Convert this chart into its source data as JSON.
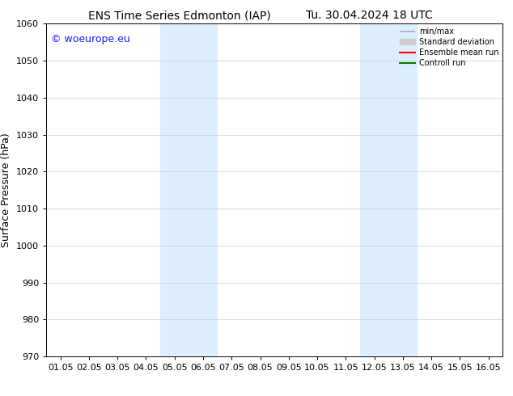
{
  "title_left": "ENS Time Series Edmonton (IAP)",
  "title_right": "Tu. 30.04.2024 18 UTC",
  "ylabel": "Surface Pressure (hPa)",
  "ylim": [
    970,
    1060
  ],
  "yticks": [
    970,
    980,
    990,
    1000,
    1010,
    1020,
    1030,
    1040,
    1050,
    1060
  ],
  "xtick_labels": [
    "01.05",
    "02.05",
    "03.05",
    "04.05",
    "05.05",
    "06.05",
    "07.05",
    "08.05",
    "09.05",
    "10.05",
    "11.05",
    "12.05",
    "13.05",
    "14.05",
    "15.05",
    "16.05"
  ],
  "xtick_positions": [
    0,
    1,
    2,
    3,
    4,
    5,
    6,
    7,
    8,
    9,
    10,
    11,
    12,
    13,
    14,
    15
  ],
  "shaded_bands": [
    {
      "x_start": 3.5,
      "x_end": 5.5
    },
    {
      "x_start": 10.5,
      "x_end": 12.5
    }
  ],
  "band_color": "#ddeeff",
  "background_color": "#ffffff",
  "watermark_text": "© woeurope.eu",
  "watermark_color": "#1a1aff",
  "legend_entries": [
    {
      "label": "min/max",
      "color": "#aaaaaa",
      "lw": 1.2
    },
    {
      "label": "Standard deviation",
      "color": "#cccccc",
      "lw": 6
    },
    {
      "label": "Ensemble mean run",
      "color": "#ff0000",
      "lw": 1.5
    },
    {
      "label": "Controll run",
      "color": "#008000",
      "lw": 1.5
    }
  ],
  "title_fontsize": 10,
  "ylabel_fontsize": 9,
  "tick_fontsize": 8,
  "legend_fontsize": 7,
  "watermark_fontsize": 9,
  "grid_color": "#cccccc",
  "spine_color": "#000000"
}
